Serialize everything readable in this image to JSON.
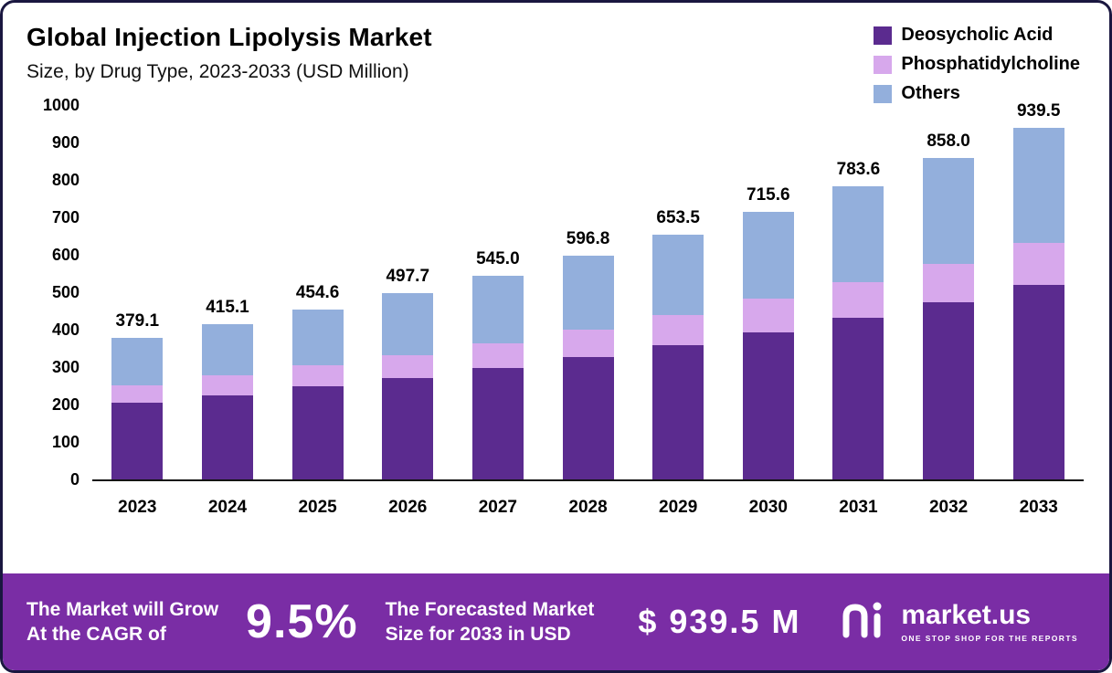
{
  "header": {
    "title": "Global Injection Lipolysis Market",
    "subtitle": "Size, by Drug Type, 2023-2033 (USD Million)"
  },
  "chart_data": {
    "type": "bar",
    "stacked": true,
    "title": "Global Injection Lipolysis Market",
    "subtitle": "Size, by Drug Type, 2023-2033 (USD Million)",
    "unit": "USD Million",
    "categories": [
      "2023",
      "2024",
      "2025",
      "2026",
      "2027",
      "2028",
      "2029",
      "2030",
      "2031",
      "2032",
      "2033"
    ],
    "series": [
      {
        "name": "Deosycholic Acid",
        "color": "#5b2b8f",
        "values": [
          205,
          225,
          249,
          271,
          297,
          327,
          358,
          393,
          431,
          473,
          519
        ]
      },
      {
        "name": "Phosphatidylcholine",
        "color": "#d7a8ec",
        "values": [
          47,
          52,
          56,
          61,
          67,
          74,
          81,
          89,
          97,
          103,
          112
        ]
      },
      {
        "name": "Others",
        "color": "#93afdc",
        "values": [
          127.1,
          138.1,
          149.6,
          165.7,
          181.0,
          195.8,
          214.5,
          233.6,
          255.6,
          282.0,
          308.5
        ]
      }
    ],
    "totals": [
      "379.1",
      "415.1",
      "454.6",
      "497.7",
      "545.0",
      "596.8",
      "653.5",
      "715.6",
      "783.6",
      "858.0",
      "939.5"
    ],
    "ylim": [
      0,
      1000
    ],
    "yticks": [
      0,
      100,
      200,
      300,
      400,
      500,
      600,
      700,
      800,
      900,
      1000
    ],
    "grid": false,
    "legend_position": "top-right"
  },
  "footer": {
    "growth_line1": "The Market will Grow",
    "growth_line2": "At the CAGR of",
    "cagr": "9.5%",
    "forecast_line1": "The Forecasted Market",
    "forecast_line2": "Size for 2033 in USD",
    "forecast_value": "$ 939.5 M",
    "brand": {
      "name": "market.us",
      "tagline": "ONE STOP SHOP FOR THE REPORTS"
    },
    "banner_color": "#7a2da5"
  }
}
